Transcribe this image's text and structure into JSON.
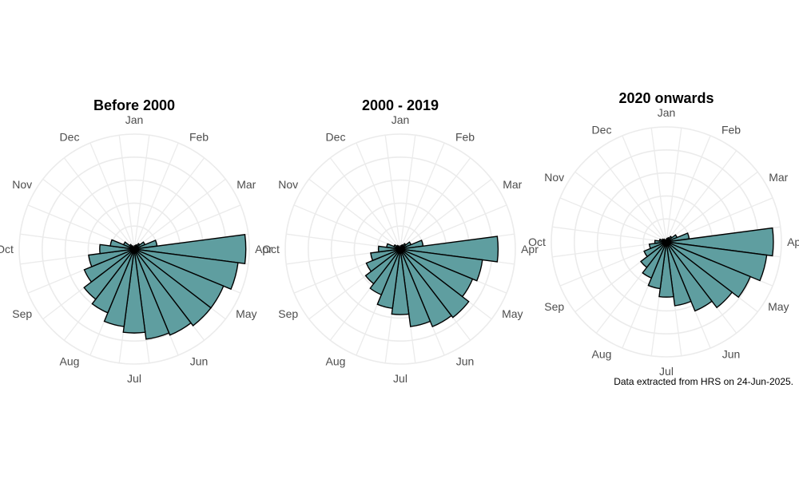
{
  "chart_data": [
    {
      "type": "rose",
      "title": "Before 2000",
      "angular_labels": [
        "Jan",
        "Feb",
        "Mar",
        "Apr",
        "May",
        "Jun",
        "Jul",
        "Aug",
        "Sep",
        "Oct",
        "Nov",
        "Dec"
      ],
      "values": [
        0.02,
        0.03,
        0.04,
        0.06,
        0.1,
        0.2,
        0.97,
        0.91,
        0.84,
        0.84,
        0.81,
        0.79,
        0.73,
        0.68,
        0.6,
        0.55,
        0.47,
        0.4,
        0.3,
        0.21,
        0.1,
        0.05,
        0.03,
        0.02
      ],
      "grid": true
    },
    {
      "type": "rose",
      "title": "2000 - 2019",
      "angular_labels": [
        "Jan",
        "Feb",
        "Mar",
        "Apr",
        "May",
        "Jun",
        "Jul",
        "Aug",
        "Sep",
        "Oct",
        "Nov",
        "Dec"
      ],
      "values": [
        0.02,
        0.03,
        0.04,
        0.06,
        0.1,
        0.2,
        0.85,
        0.72,
        0.68,
        0.75,
        0.73,
        0.68,
        0.57,
        0.52,
        0.43,
        0.38,
        0.32,
        0.26,
        0.19,
        0.12,
        0.06,
        0.04,
        0.03,
        0.02
      ],
      "grid": true
    },
    {
      "type": "rose",
      "title": "2020 onwards",
      "angular_labels": [
        "Jan",
        "Feb",
        "Mar",
        "Apr",
        "May",
        "Jun",
        "Jul",
        "Aug",
        "Sep",
        "Oct",
        "Nov",
        "Dec"
      ],
      "values": [
        0.02,
        0.03,
        0.04,
        0.06,
        0.1,
        0.2,
        0.93,
        0.88,
        0.79,
        0.72,
        0.65,
        0.56,
        0.48,
        0.41,
        0.34,
        0.28,
        0.21,
        0.15,
        0.1,
        0.06,
        0.04,
        0.03,
        0.02,
        0.02
      ],
      "grid": true
    }
  ],
  "caption": "Data extracted from HRS on 24-Jun-2025.",
  "colors": {
    "bar_fill": "#5f9ea0",
    "bar_stroke": "#000000",
    "grid": "#ebebeb",
    "label": "#4d4d4d"
  }
}
